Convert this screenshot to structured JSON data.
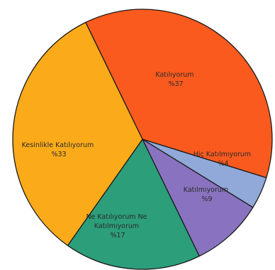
{
  "chart_data": {
    "type": "pie",
    "start_angle_deg": -116,
    "direction": "clockwise",
    "slices": [
      {
        "label": "Katılıyorum",
        "value_text": "%37",
        "value": 37,
        "color": "#fb5a1e"
      },
      {
        "label": "Hiç Katılmıyorum",
        "value_text": "%4",
        "value": 4,
        "color": "#90a9d8"
      },
      {
        "label": "Katılmıyorum",
        "value_text": "%9",
        "value": 9,
        "color": "#8973c0"
      },
      {
        "label": "Ne Katılıyorum Ne Katılmıyorum",
        "value_text": "%17",
        "value": 17,
        "color": "#2c9e7a"
      },
      {
        "label": "Kesinlikle Katılıyorum",
        "value_text": "%33",
        "value": 33,
        "color": "#fbab1a"
      }
    ]
  }
}
